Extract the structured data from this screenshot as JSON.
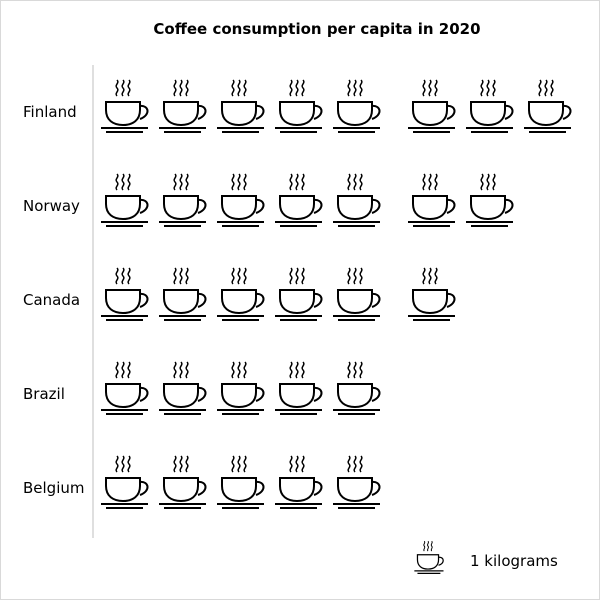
{
  "chart_data": {
    "type": "pictograph",
    "title": "Coffee consumption per capita in 2020",
    "categories": [
      "Finland",
      "Norway",
      "Canada",
      "Brazil",
      "Belgium"
    ],
    "values": [
      8,
      7,
      6,
      5,
      5
    ],
    "unit_icon": "coffee-cup-icon",
    "legend": {
      "label": "1 kilograms",
      "value_per_icon": 1
    },
    "colors": {
      "icon": "#000000",
      "axis": "#bfbfbf"
    }
  }
}
